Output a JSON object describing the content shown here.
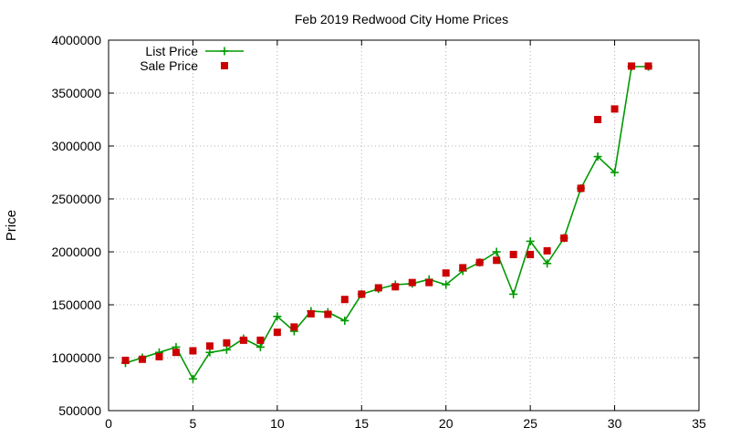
{
  "chart_data": {
    "type": "line",
    "title": "Feb 2019 Redwood City Home Prices",
    "xlabel": "",
    "ylabel": "Price",
    "xlim": [
      0,
      35
    ],
    "ylim": [
      500000,
      4000000
    ],
    "xticks": [
      0,
      5,
      10,
      15,
      20,
      25,
      30,
      35
    ],
    "yticks": [
      500000,
      1000000,
      1500000,
      2000000,
      2500000,
      3000000,
      3500000,
      4000000
    ],
    "grid": true,
    "legend_position": "top-left",
    "series": [
      {
        "name": "List Price",
        "style": "line-with-plus-markers",
        "color": "#009900",
        "x": [
          1,
          2,
          3,
          4,
          5,
          6,
          7,
          8,
          9,
          10,
          11,
          12,
          13,
          14,
          15,
          16,
          17,
          18,
          19,
          20,
          21,
          22,
          23,
          24,
          25,
          26,
          27,
          28,
          29,
          30,
          31,
          32
        ],
        "y": [
          950000,
          1000000,
          1050000,
          1100000,
          800000,
          1050000,
          1075000,
          1180000,
          1100000,
          1390000,
          1250000,
          1440000,
          1430000,
          1350000,
          1600000,
          1650000,
          1690000,
          1700000,
          1740000,
          1690000,
          1820000,
          1900000,
          2000000,
          1600000,
          2100000,
          1890000,
          2130000,
          2600000,
          2900000,
          2750000,
          3750000,
          3750000
        ]
      },
      {
        "name": "Sale Price",
        "style": "square-markers",
        "color": "#cc0000",
        "x": [
          1,
          2,
          3,
          4,
          5,
          6,
          7,
          8,
          9,
          10,
          11,
          12,
          13,
          14,
          15,
          16,
          17,
          18,
          19,
          20,
          21,
          22,
          23,
          24,
          25,
          26,
          27,
          28,
          29,
          30,
          31,
          32
        ],
        "y": [
          975000,
          985000,
          1010000,
          1050000,
          1065000,
          1110000,
          1140000,
          1165000,
          1165000,
          1240000,
          1290000,
          1415000,
          1410000,
          1550000,
          1600000,
          1660000,
          1670000,
          1710000,
          1710000,
          1800000,
          1850000,
          1900000,
          1920000,
          1975000,
          1975000,
          2010000,
          2130000,
          2600000,
          3250000,
          3350000,
          3755000,
          3755000
        ]
      }
    ]
  }
}
